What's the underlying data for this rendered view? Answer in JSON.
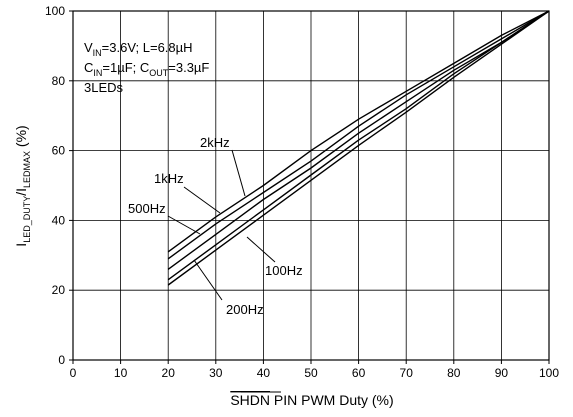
{
  "chart_data": {
    "type": "line",
    "xlabel": "SHDN PIN PWM Duty (%)",
    "xlabel_overline": "SHDN",
    "xlabel_rest": " PIN PWM Duty (%)",
    "ylabel": "I_LED_DUTY/I_LEDMAX (%)",
    "ylabel_parts": {
      "i1": "I",
      "sub1": "LED_DUTY",
      "slash": "/I",
      "sub2": "LEDMAX",
      "tail": " (%)"
    },
    "xlim": [
      0,
      100
    ],
    "ylim": [
      0,
      100
    ],
    "xticks": [
      0,
      10,
      20,
      30,
      40,
      50,
      60,
      70,
      80,
      90,
      100
    ],
    "yticks": [
      0,
      20,
      40,
      60,
      80,
      100
    ],
    "grid": true,
    "annotations": [
      {
        "main": "V",
        "sub": "IN",
        "rest": "=3.6V; L=6.8µH"
      },
      {
        "main": "C",
        "sub": "IN",
        "rest": "=1µF; C",
        "sub2": "OUT",
        "rest2": "=3.3µF"
      },
      {
        "main": "3LEDs"
      }
    ],
    "series": [
      {
        "name": "2kHz",
        "x": [
          20,
          30,
          40,
          50,
          60,
          70,
          80,
          90,
          100
        ],
        "y": [
          31,
          41,
          50,
          60,
          69,
          77,
          85,
          93,
          100
        ]
      },
      {
        "name": "1kHz",
        "x": [
          20,
          30,
          40,
          50,
          60,
          70,
          80,
          90,
          100
        ],
        "y": [
          29,
          39,
          48,
          57,
          67,
          76,
          84,
          92,
          100
        ]
      },
      {
        "name": "500Hz",
        "x": [
          20,
          30,
          40,
          50,
          60,
          70,
          80,
          90,
          100
        ],
        "y": [
          26,
          36,
          46,
          55,
          65,
          74,
          83,
          91,
          100
        ]
      },
      {
        "name": "200Hz",
        "x": [
          20,
          30,
          40,
          50,
          60,
          70,
          80,
          90,
          100
        ],
        "y": [
          23,
          33,
          43,
          53,
          63,
          72,
          82,
          91,
          100
        ]
      },
      {
        "name": "100Hz",
        "x": [
          20,
          30,
          40,
          50,
          60,
          70,
          80,
          90,
          100
        ],
        "y": [
          21.5,
          31.5,
          41.5,
          51.5,
          61.5,
          71,
          81,
          90.5,
          100
        ]
      }
    ],
    "line_color": "#000000",
    "grid_color": "#000000",
    "background": "#ffffff"
  }
}
